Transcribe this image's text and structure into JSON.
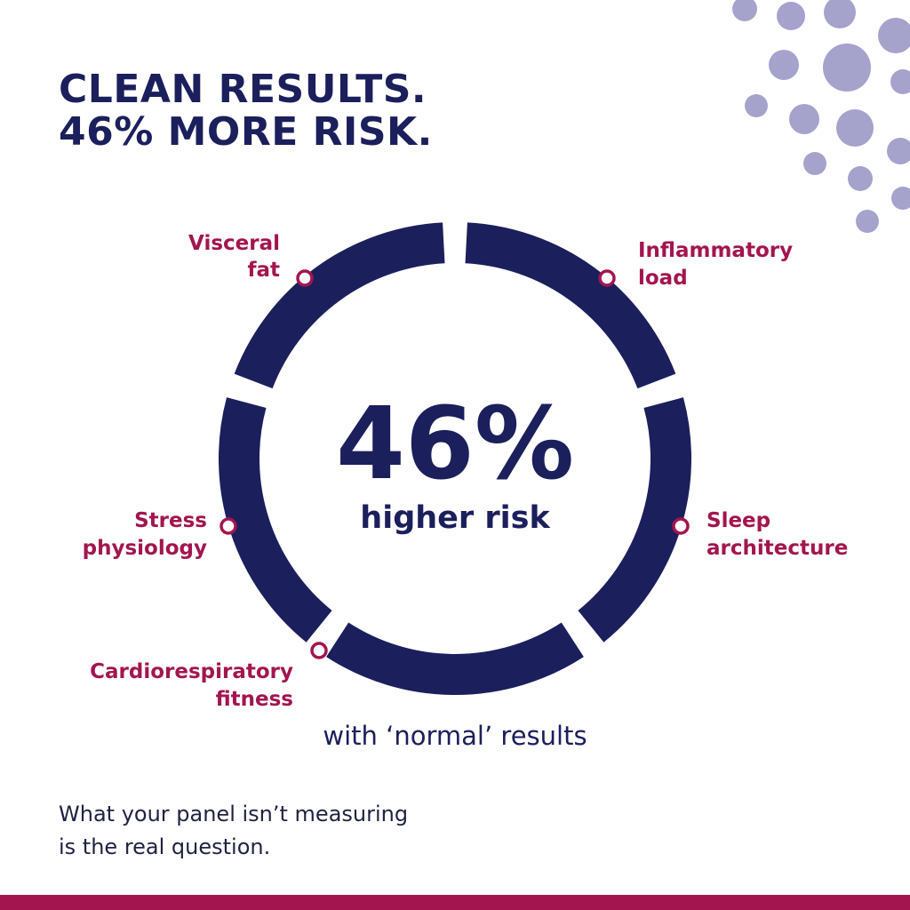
{
  "header": {
    "title": [
      "CLEAN RESULTS.",
      "46% MORE RISK."
    ]
  },
  "center": {
    "value": "46%",
    "caption": "higher risk"
  },
  "subtitle": "with ‘normal’ results",
  "factors": [
    {
      "lines": [
        "Visceral",
        "fat"
      ]
    },
    {
      "lines": [
        "Inflammatory",
        "load"
      ]
    },
    {
      "lines": [
        "Stress",
        "physiology"
      ]
    },
    {
      "lines": [
        "Sleep",
        "architecture"
      ]
    },
    {
      "lines": [
        "Cardiorespiratory",
        "fitness"
      ]
    }
  ],
  "footer": [
    "What your panel isn’t measuring",
    "is the real question."
  ]
}
